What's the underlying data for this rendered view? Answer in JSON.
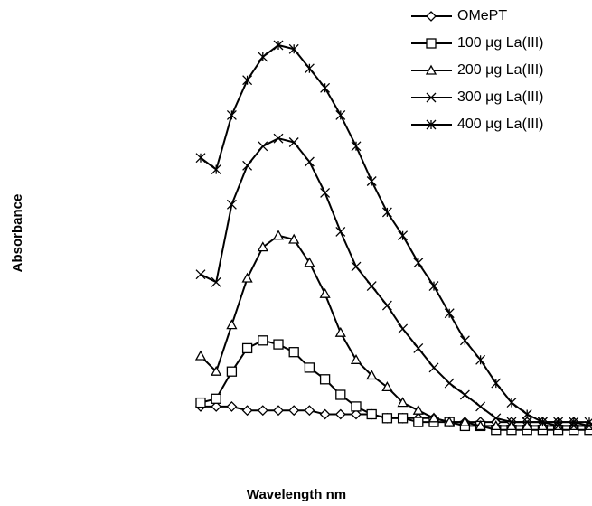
{
  "chart_data": {
    "type": "line",
    "x_label": "Wavelength nm",
    "y_label": "Absorbance",
    "categories": [
      null,
      null,
      null,
      null,
      null,
      null,
      null,
      null,
      null,
      null,
      null,
      null,
      null,
      null,
      null,
      null,
      null,
      null,
      null,
      null,
      null,
      null,
      null,
      null,
      null,
      null
    ],
    "ylim": [
      0,
      1
    ],
    "legend": "upper right",
    "series": [
      {
        "name": "OMePT",
        "color": "#000000",
        "marker": "diamond",
        "values": [
          0.07,
          0.07,
          0.07,
          0.06,
          0.06,
          0.06,
          0.06,
          0.06,
          0.05,
          0.05,
          0.05,
          0.05,
          0.04,
          0.04,
          0.04,
          0.04,
          0.03,
          0.03,
          0.03,
          0.03,
          0.03,
          0.03,
          0.03,
          0.03,
          0.03,
          0.02
        ]
      },
      {
        "name": "100 µg La(III)",
        "color": "#000000",
        "marker": "square",
        "values": [
          0.08,
          0.09,
          0.16,
          0.22,
          0.24,
          0.23,
          0.21,
          0.17,
          0.14,
          0.1,
          0.07,
          0.05,
          0.04,
          0.04,
          0.03,
          0.03,
          0.03,
          0.02,
          0.02,
          0.01,
          0.01,
          0.01,
          0.01,
          0.01,
          0.01,
          0.01
        ]
      },
      {
        "name": "200 µg La(III)",
        "color": "#000000",
        "marker": "triangle",
        "values": [
          0.2,
          0.16,
          0.28,
          0.4,
          0.48,
          0.51,
          0.5,
          0.44,
          0.36,
          0.26,
          0.19,
          0.15,
          0.12,
          0.08,
          0.06,
          0.04,
          0.03,
          0.03,
          0.02,
          0.02,
          0.02,
          0.02,
          0.02,
          0.02,
          0.02,
          0.02
        ]
      },
      {
        "name": "300 µg La(III)",
        "color": "#000000",
        "marker": "x",
        "values": [
          0.41,
          0.39,
          0.59,
          0.69,
          0.74,
          0.76,
          0.75,
          0.7,
          0.62,
          0.52,
          0.43,
          0.38,
          0.33,
          0.27,
          0.22,
          0.17,
          0.13,
          0.1,
          0.07,
          0.04,
          0.03,
          0.03,
          0.03,
          0.02,
          0.02,
          0.02
        ]
      },
      {
        "name": "400 µg La(III)",
        "color": "#000000",
        "marker": "asterisk",
        "values": [
          0.71,
          0.68,
          0.82,
          0.91,
          0.97,
          1.0,
          0.99,
          0.94,
          0.89,
          0.82,
          0.74,
          0.65,
          0.57,
          0.51,
          0.44,
          0.38,
          0.31,
          0.24,
          0.19,
          0.13,
          0.08,
          0.05,
          0.03,
          0.03,
          0.03,
          0.03
        ]
      }
    ]
  }
}
